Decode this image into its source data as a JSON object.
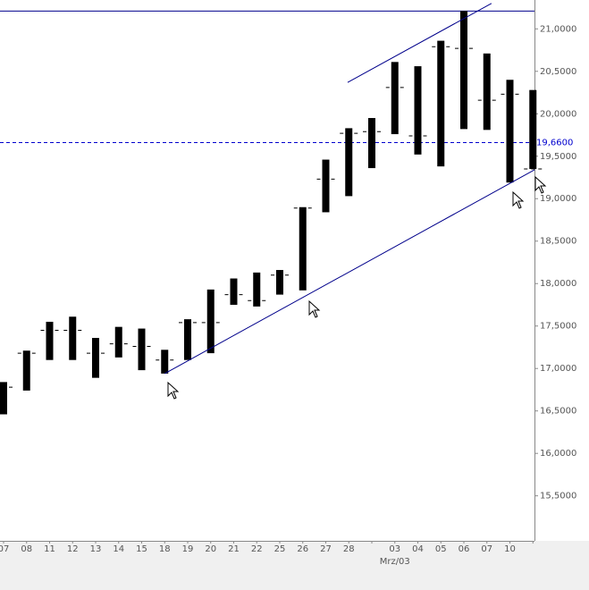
{
  "chart_data": {
    "type": "ohlc",
    "categories": [
      "07",
      "08",
      "11",
      "12",
      "13",
      "14",
      "15",
      "18",
      "19",
      "20",
      "21",
      "22",
      "25",
      "26",
      "27",
      "28",
      null,
      "03",
      "04",
      "05",
      "06",
      "07",
      "10",
      null
    ],
    "series": [
      {
        "name": "high",
        "values": [
          16.84,
          17.21,
          17.55,
          17.61,
          17.36,
          17.49,
          17.47,
          17.22,
          17.58,
          17.93,
          18.06,
          18.13,
          18.16,
          18.9,
          19.46,
          19.83,
          19.95,
          20.61,
          20.56,
          20.86,
          21.21,
          20.71,
          20.4,
          20.28
        ]
      },
      {
        "name": "low",
        "values": [
          16.46,
          16.74,
          17.1,
          17.1,
          16.89,
          17.13,
          16.98,
          16.94,
          17.1,
          17.18,
          17.75,
          17.73,
          17.87,
          17.92,
          18.84,
          19.03,
          19.36,
          19.76,
          19.52,
          19.38,
          19.82,
          19.81,
          19.19,
          19.35
        ]
      },
      {
        "name": "close",
        "values": [
          16.78,
          17.18,
          17.45,
          17.45,
          17.18,
          17.29,
          17.26,
          17.1,
          17.54,
          17.54,
          17.87,
          17.8,
          18.1,
          18.89,
          19.23,
          19.77,
          19.79,
          20.31,
          19.74,
          20.79,
          20.77,
          20.16,
          20.23,
          19.35
        ]
      }
    ],
    "color": "#000000",
    "ylim": [
      14.97,
      21.34
    ],
    "yticks": [
      {
        "value": 15.5,
        "label": "15,5000"
      },
      {
        "value": 16,
        "label": "16,0000"
      },
      {
        "value": 16.5,
        "label": "16,5000"
      },
      {
        "value": 17,
        "label": "17,0000"
      },
      {
        "value": 17.5,
        "label": "17,5000"
      },
      {
        "value": 18,
        "label": "18,0000"
      },
      {
        "value": 18.5,
        "label": "18,5000"
      },
      {
        "value": 19,
        "label": "19,0000"
      },
      {
        "value": 19.5,
        "label": "19,5000"
      },
      {
        "value": 20,
        "label": "20,0000"
      },
      {
        "value": 20.5,
        "label": "20,5000"
      },
      {
        "value": 21,
        "label": "21,0000"
      }
    ],
    "hlines": [
      {
        "value": 21.21,
        "color": "#00008b",
        "style": "solid"
      },
      {
        "value": 19.66,
        "color": "#0000cd",
        "style": "dashed",
        "label": "19,6600"
      }
    ],
    "trendlines": [
      {
        "x": [
          7,
          23.07
        ],
        "y": [
          16.94,
          19.34
        ],
        "color": "#00008b"
      },
      {
        "x": [
          14.95,
          21.2
        ],
        "y": [
          20.37,
          21.3
        ],
        "color": "#00008b"
      }
    ],
    "x_annotation": {
      "text": "Mrz/03",
      "category": 17
    }
  }
}
